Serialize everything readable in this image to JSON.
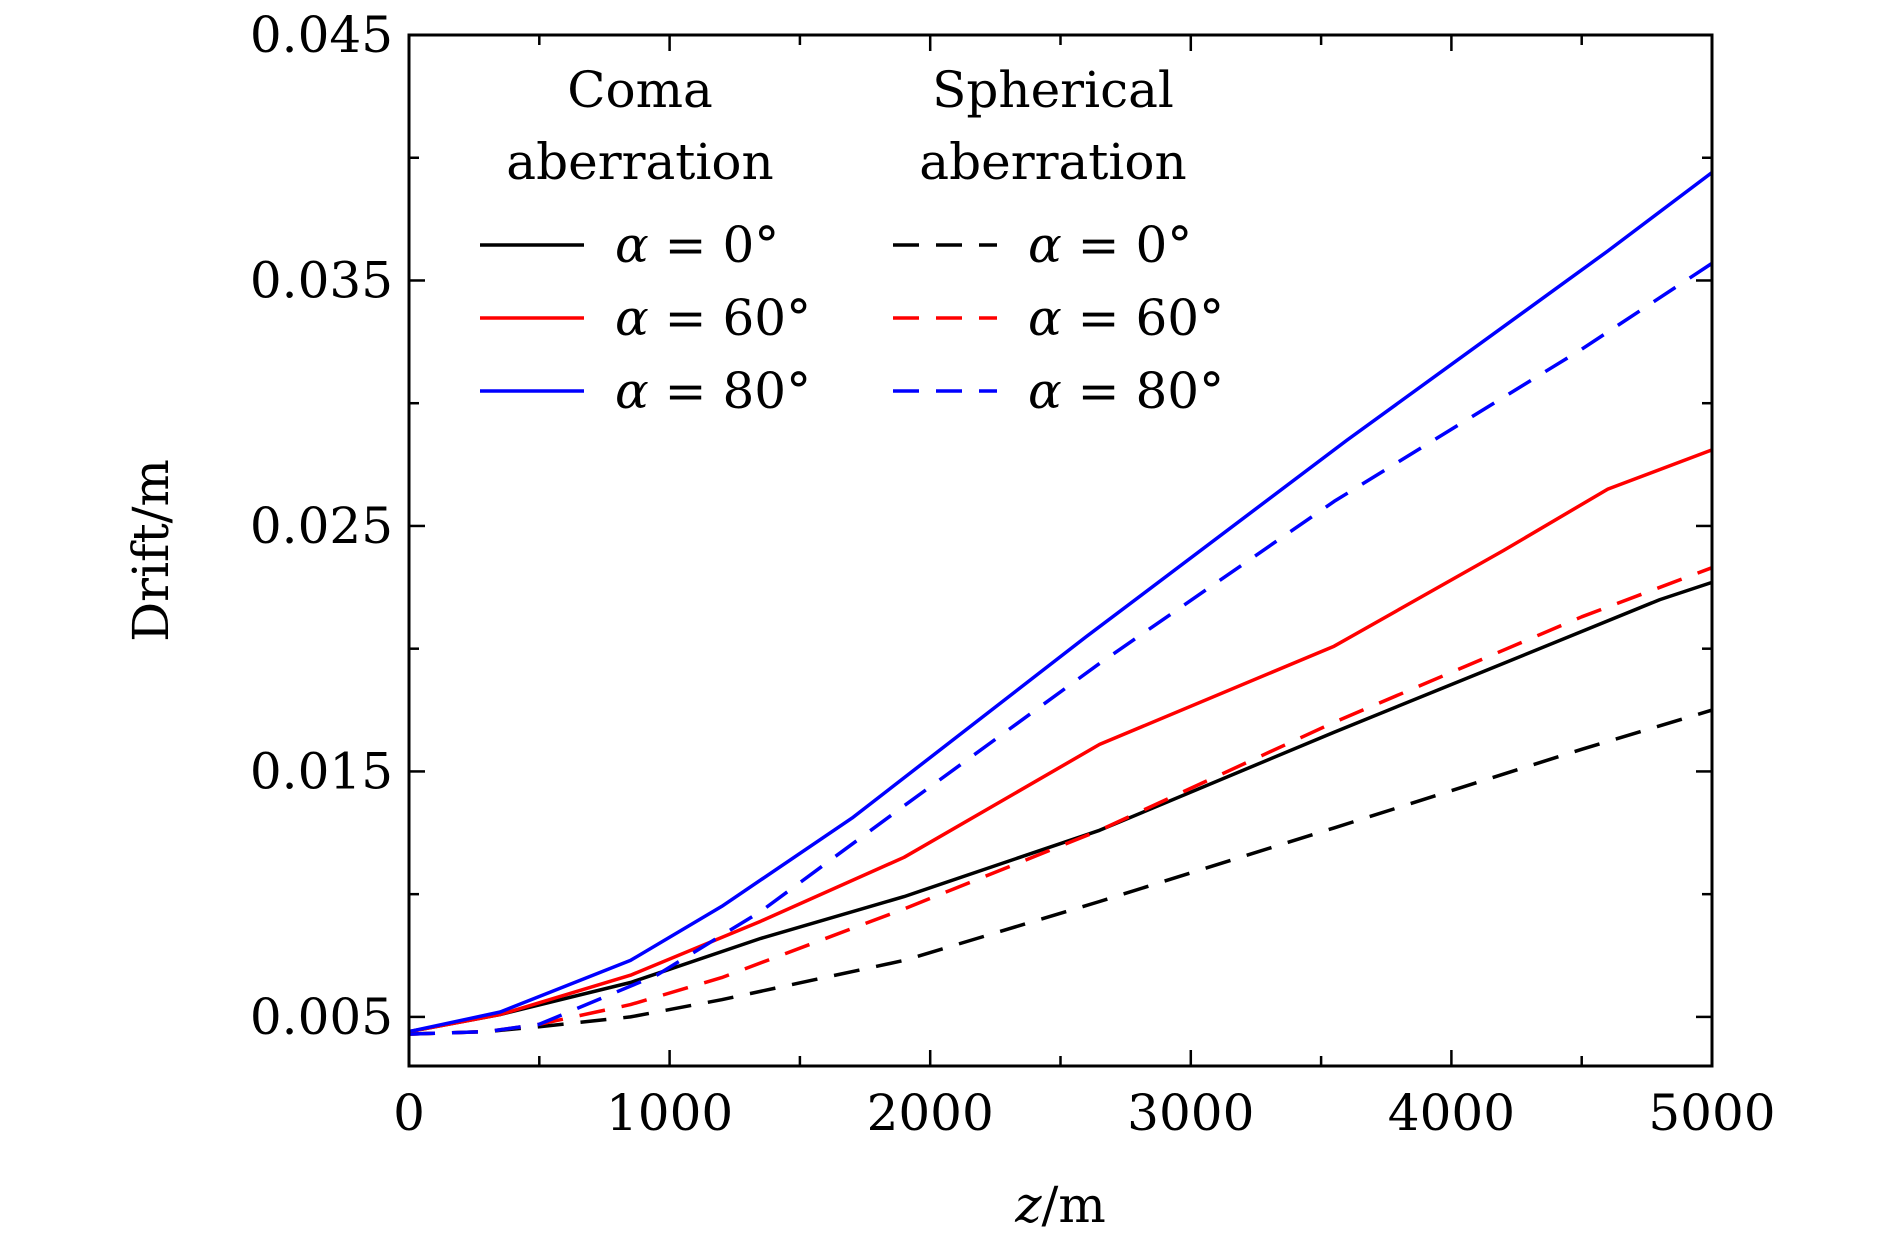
{
  "chart_data": {
    "type": "line",
    "xlabel_italic": "z",
    "xlabel_unit": "/m",
    "ylabel": "Drift/m",
    "xlim": [
      0,
      5000
    ],
    "ylim": [
      0.003,
      0.045
    ],
    "x_ticks": [
      "0",
      "1000",
      "2000",
      "3000",
      "4000",
      "5000"
    ],
    "y_ticks": [
      "0.005",
      "0.015",
      "0.025",
      "0.035",
      "0.045"
    ],
    "legend": {
      "placement": "top-left",
      "groups": [
        {
          "title_line1": "Coma",
          "title_line2": "aberration",
          "style": "solid"
        },
        {
          "title_line1": "Spherical",
          "title_line2": "aberration",
          "style": "dashed"
        }
      ]
    },
    "series": [
      {
        "label": "α = 0°",
        "group": "Coma aberration",
        "style": "solid",
        "color": "#000000",
        "x": [
          0,
          350,
          850,
          1350,
          1900,
          2650,
          3550,
          4200,
          4800,
          5000
        ],
        "y": [
          0.0044,
          0.0051,
          0.0064,
          0.0082,
          0.0099,
          0.0126,
          0.0166,
          0.0194,
          0.022,
          0.0227
        ]
      },
      {
        "label": "α = 60°",
        "group": "Coma aberration",
        "style": "solid",
        "color": "#ff0000",
        "x": [
          0,
          350,
          850,
          1350,
          1900,
          2650,
          3550,
          4200,
          4600,
          5000
        ],
        "y": [
          0.0044,
          0.0051,
          0.0067,
          0.0089,
          0.0115,
          0.0161,
          0.0201,
          0.024,
          0.0265,
          0.0281
        ]
      },
      {
        "label": "α = 80°",
        "group": "Coma aberration",
        "style": "solid",
        "color": "#0000ff",
        "x": [
          0,
          350,
          850,
          1200,
          1700,
          2600,
          3600,
          4600,
          5000
        ],
        "y": [
          0.0044,
          0.0052,
          0.0073,
          0.0095,
          0.0131,
          0.0205,
          0.0285,
          0.0362,
          0.0394
        ]
      },
      {
        "label": "α = 0°",
        "group": "Spherical aberration",
        "style": "dashed",
        "color": "#000000",
        "x": [
          0,
          300,
          500,
          850,
          1200,
          1900,
          2650,
          3550,
          4500,
          5000
        ],
        "y": [
          0.0043,
          0.0044,
          0.0046,
          0.005,
          0.0057,
          0.0073,
          0.0097,
          0.0127,
          0.0159,
          0.0175
        ]
      },
      {
        "label": "α = 60°",
        "group": "Spherical aberration",
        "style": "dashed",
        "color": "#ff0000",
        "x": [
          0,
          300,
          500,
          850,
          1200,
          1900,
          2650,
          3550,
          4500,
          5000
        ],
        "y": [
          0.0043,
          0.0044,
          0.0047,
          0.0055,
          0.0066,
          0.0094,
          0.0126,
          0.017,
          0.0213,
          0.0233
        ]
      },
      {
        "label": "α = 80°",
        "group": "Spherical aberration",
        "style": "dashed",
        "color": "#0000ff",
        "x": [
          0,
          300,
          500,
          950,
          1350,
          1900,
          2650,
          3550,
          4500,
          5000
        ],
        "y": [
          0.0043,
          0.0044,
          0.0047,
          0.0067,
          0.0093,
          0.0136,
          0.0194,
          0.026,
          0.0322,
          0.0357
        ]
      }
    ]
  }
}
